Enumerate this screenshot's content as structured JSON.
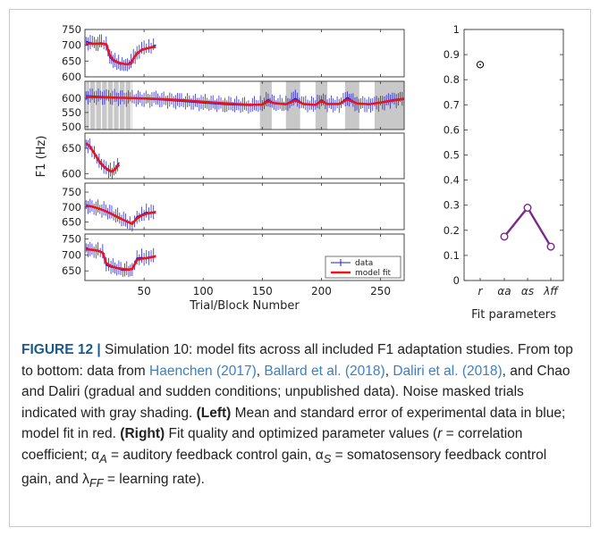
{
  "chart_data": [
    {
      "type": "line",
      "panel": "left",
      "ylabel": "F1 (Hz)",
      "xlabel": "Trial/Block Number",
      "xlim": [
        0,
        270
      ],
      "xticks": [
        50,
        100,
        150,
        200,
        250
      ],
      "legend": {
        "placement": "bottom-right",
        "entries": [
          "data",
          "model fit"
        ]
      },
      "colors": {
        "data": "#1f1fd6",
        "model": "#e8161b",
        "shade": "#c8c8c8"
      },
      "subplots": [
        {
          "name": "Haenchen (2017)",
          "ylim": [
            600,
            750
          ],
          "yticks": [
            600,
            650,
            700,
            750
          ],
          "x": [
            1,
            8,
            14,
            18,
            21,
            24,
            27,
            30,
            33,
            36,
            39,
            41,
            44,
            48,
            52,
            56,
            60
          ],
          "data": [
            712,
            705,
            708,
            700,
            662,
            650,
            645,
            640,
            641,
            640,
            648,
            660,
            670,
            688,
            690,
            694,
            701
          ],
          "fit": [
            705,
            705,
            705,
            703,
            668,
            654,
            647,
            643,
            641,
            640,
            642,
            658,
            674,
            685,
            690,
            693,
            695
          ],
          "shading": []
        },
        {
          "name": "Ballard et al. (2018)",
          "ylim": [
            490,
            660
          ],
          "yticks": [
            500,
            550,
            600
          ],
          "x": [
            1,
            20,
            40,
            60,
            80,
            100,
            120,
            140,
            150,
            155,
            160,
            170,
            178,
            185,
            195,
            200,
            205,
            215,
            222,
            230,
            240,
            250,
            260,
            270
          ],
          "data": [
            609,
            605,
            600,
            596,
            590,
            584,
            578,
            575,
            580,
            596,
            582,
            578,
            600,
            580,
            576,
            595,
            580,
            580,
            603,
            581,
            579,
            585,
            595,
            600
          ],
          "fit": [
            605,
            603,
            601,
            598,
            594,
            588,
            582,
            577,
            578,
            590,
            583,
            579,
            593,
            580,
            577,
            590,
            580,
            580,
            596,
            582,
            579,
            585,
            592,
            598
          ],
          "shading": [
            [
              1,
              40
            ],
            [
              148,
              158
            ],
            [
              170,
              182
            ],
            [
              195,
              205
            ],
            [
              220,
              232
            ],
            [
              245,
              270
            ]
          ]
        },
        {
          "name": "Daliri et al. (2018)",
          "ylim": [
            590,
            680
          ],
          "yticks": [
            600,
            650
          ],
          "x": [
            1,
            4,
            8,
            12,
            16,
            20,
            23,
            26,
            29
          ],
          "data": [
            658,
            656,
            638,
            622,
            612,
            605,
            603,
            612,
            622
          ],
          "fit": [
            660,
            654,
            640,
            625,
            614,
            607,
            604,
            610,
            618
          ],
          "shading": []
        },
        {
          "name": "Chao and Daliri (gradual)",
          "ylim": [
            625,
            780
          ],
          "yticks": [
            650,
            700,
            750
          ],
          "x": [
            1,
            6,
            11,
            16,
            21,
            26,
            31,
            36,
            40,
            44,
            48,
            52,
            56,
            60
          ],
          "data": [
            708,
            700,
            697,
            690,
            682,
            672,
            660,
            650,
            642,
            668,
            675,
            683,
            680,
            686
          ],
          "fit": [
            705,
            702,
            696,
            689,
            680,
            670,
            660,
            651,
            645,
            662,
            672,
            678,
            681,
            683
          ],
          "shading": []
        },
        {
          "name": "Chao and Daliri (sudden)",
          "ylim": [
            620,
            765
          ],
          "yticks": [
            650,
            700,
            750
          ],
          "x": [
            1,
            6,
            11,
            15,
            18,
            22,
            27,
            32,
            37,
            40,
            44,
            48,
            52,
            56,
            60
          ],
          "data": [
            722,
            714,
            713,
            706,
            668,
            662,
            658,
            652,
            653,
            656,
            690,
            692,
            688,
            692,
            698
          ],
          "fit": [
            717,
            716,
            713,
            707,
            674,
            665,
            659,
            656,
            654,
            656,
            684,
            688,
            690,
            693,
            695
          ],
          "shading": []
        }
      ]
    },
    {
      "type": "line",
      "panel": "right",
      "xlabel": "Fit parameters",
      "categories": [
        "r",
        "αa",
        "αs",
        "λff"
      ],
      "ylim": [
        0,
        1
      ],
      "yticks": [
        0,
        0.1,
        0.2,
        0.3,
        0.4,
        0.5,
        0.6,
        0.7,
        0.8,
        0.9,
        1
      ],
      "r_value": 0.86,
      "parameter_values": [
        0.175,
        0.29,
        0.135
      ],
      "colors": {
        "parameters": "#7a2a8c",
        "r": "#000000"
      }
    }
  ],
  "caption": {
    "label": "FIGURE 12 |",
    "t1": " Simulation 10: model fits across all included F1 adaptation studies. From top to bottom: data from ",
    "ref1": "Haenchen (2017)",
    "t2": ", ",
    "ref2": "Ballard et al. (2018)",
    "t3": ", ",
    "ref3": "Daliri et al. (2018)",
    "t4": ", and Chao and Daliri (gradual and sudden conditions; unpublished data). Noise masked trials indicated with gray shading. ",
    "left": "(Left)",
    "t5": " Mean and standard error of experimental data in blue; model fit in red. ",
    "right": "(Right)",
    "t6": " Fit quality and optimized parameter values (",
    "r": "r",
    "t7": " = correlation coefficient; α",
    "sub_a": "A",
    "t8": " = auditory feedback control gain, α",
    "sub_s": "S",
    "t9": " = somatosensory feedback control gain, and λ",
    "sub_ff": "FF",
    "t10": " = learning rate)."
  }
}
